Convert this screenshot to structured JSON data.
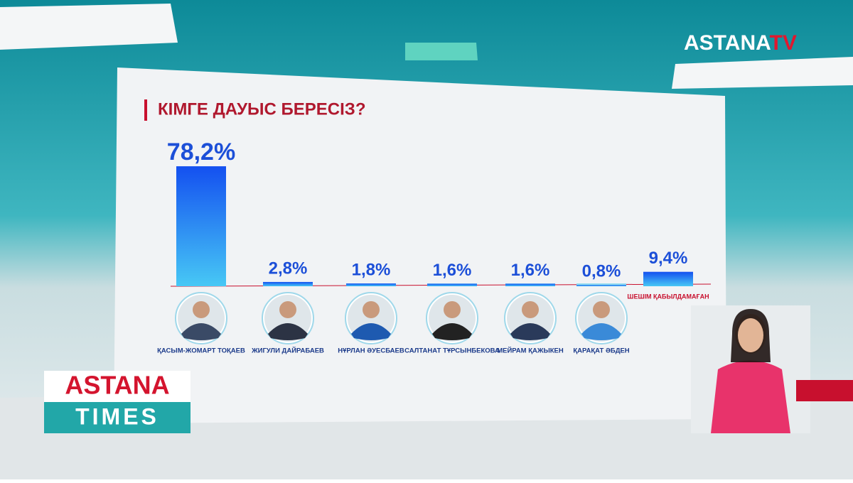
{
  "branding": {
    "logo_main": "ASTANA",
    "logo_accent": "TV"
  },
  "show": {
    "line1": "ASTANA",
    "line2": "TIMES"
  },
  "chart_data": {
    "type": "bar",
    "title": "КІМГЕ ДАУЫС БЕРЕСІЗ?",
    "categories": [
      "ҚАСЫМ-ЖОМАРТ ТОҚАЕВ",
      "ЖИГУЛИ ДАЙРАБАЕВ",
      "НҰРЛАН ӘУЕСБАЕВ",
      "САЛТАНАТ ТҰРСЫНБЕКОВА",
      "МЕЙРАМ ҚАЖЫКЕН",
      "ҚАРАҚАТ ӘБДЕН",
      "ШЕШІМ ҚАБЫЛДАМАҒАН"
    ],
    "values": [
      78.2,
      2.8,
      1.8,
      1.6,
      1.6,
      0.8,
      9.4
    ],
    "value_labels": [
      "78,2%",
      "2,8%",
      "1,8%",
      "1,6%",
      "1,6%",
      "0,8%",
      "9,4%"
    ],
    "color": "#1450f0"
  }
}
